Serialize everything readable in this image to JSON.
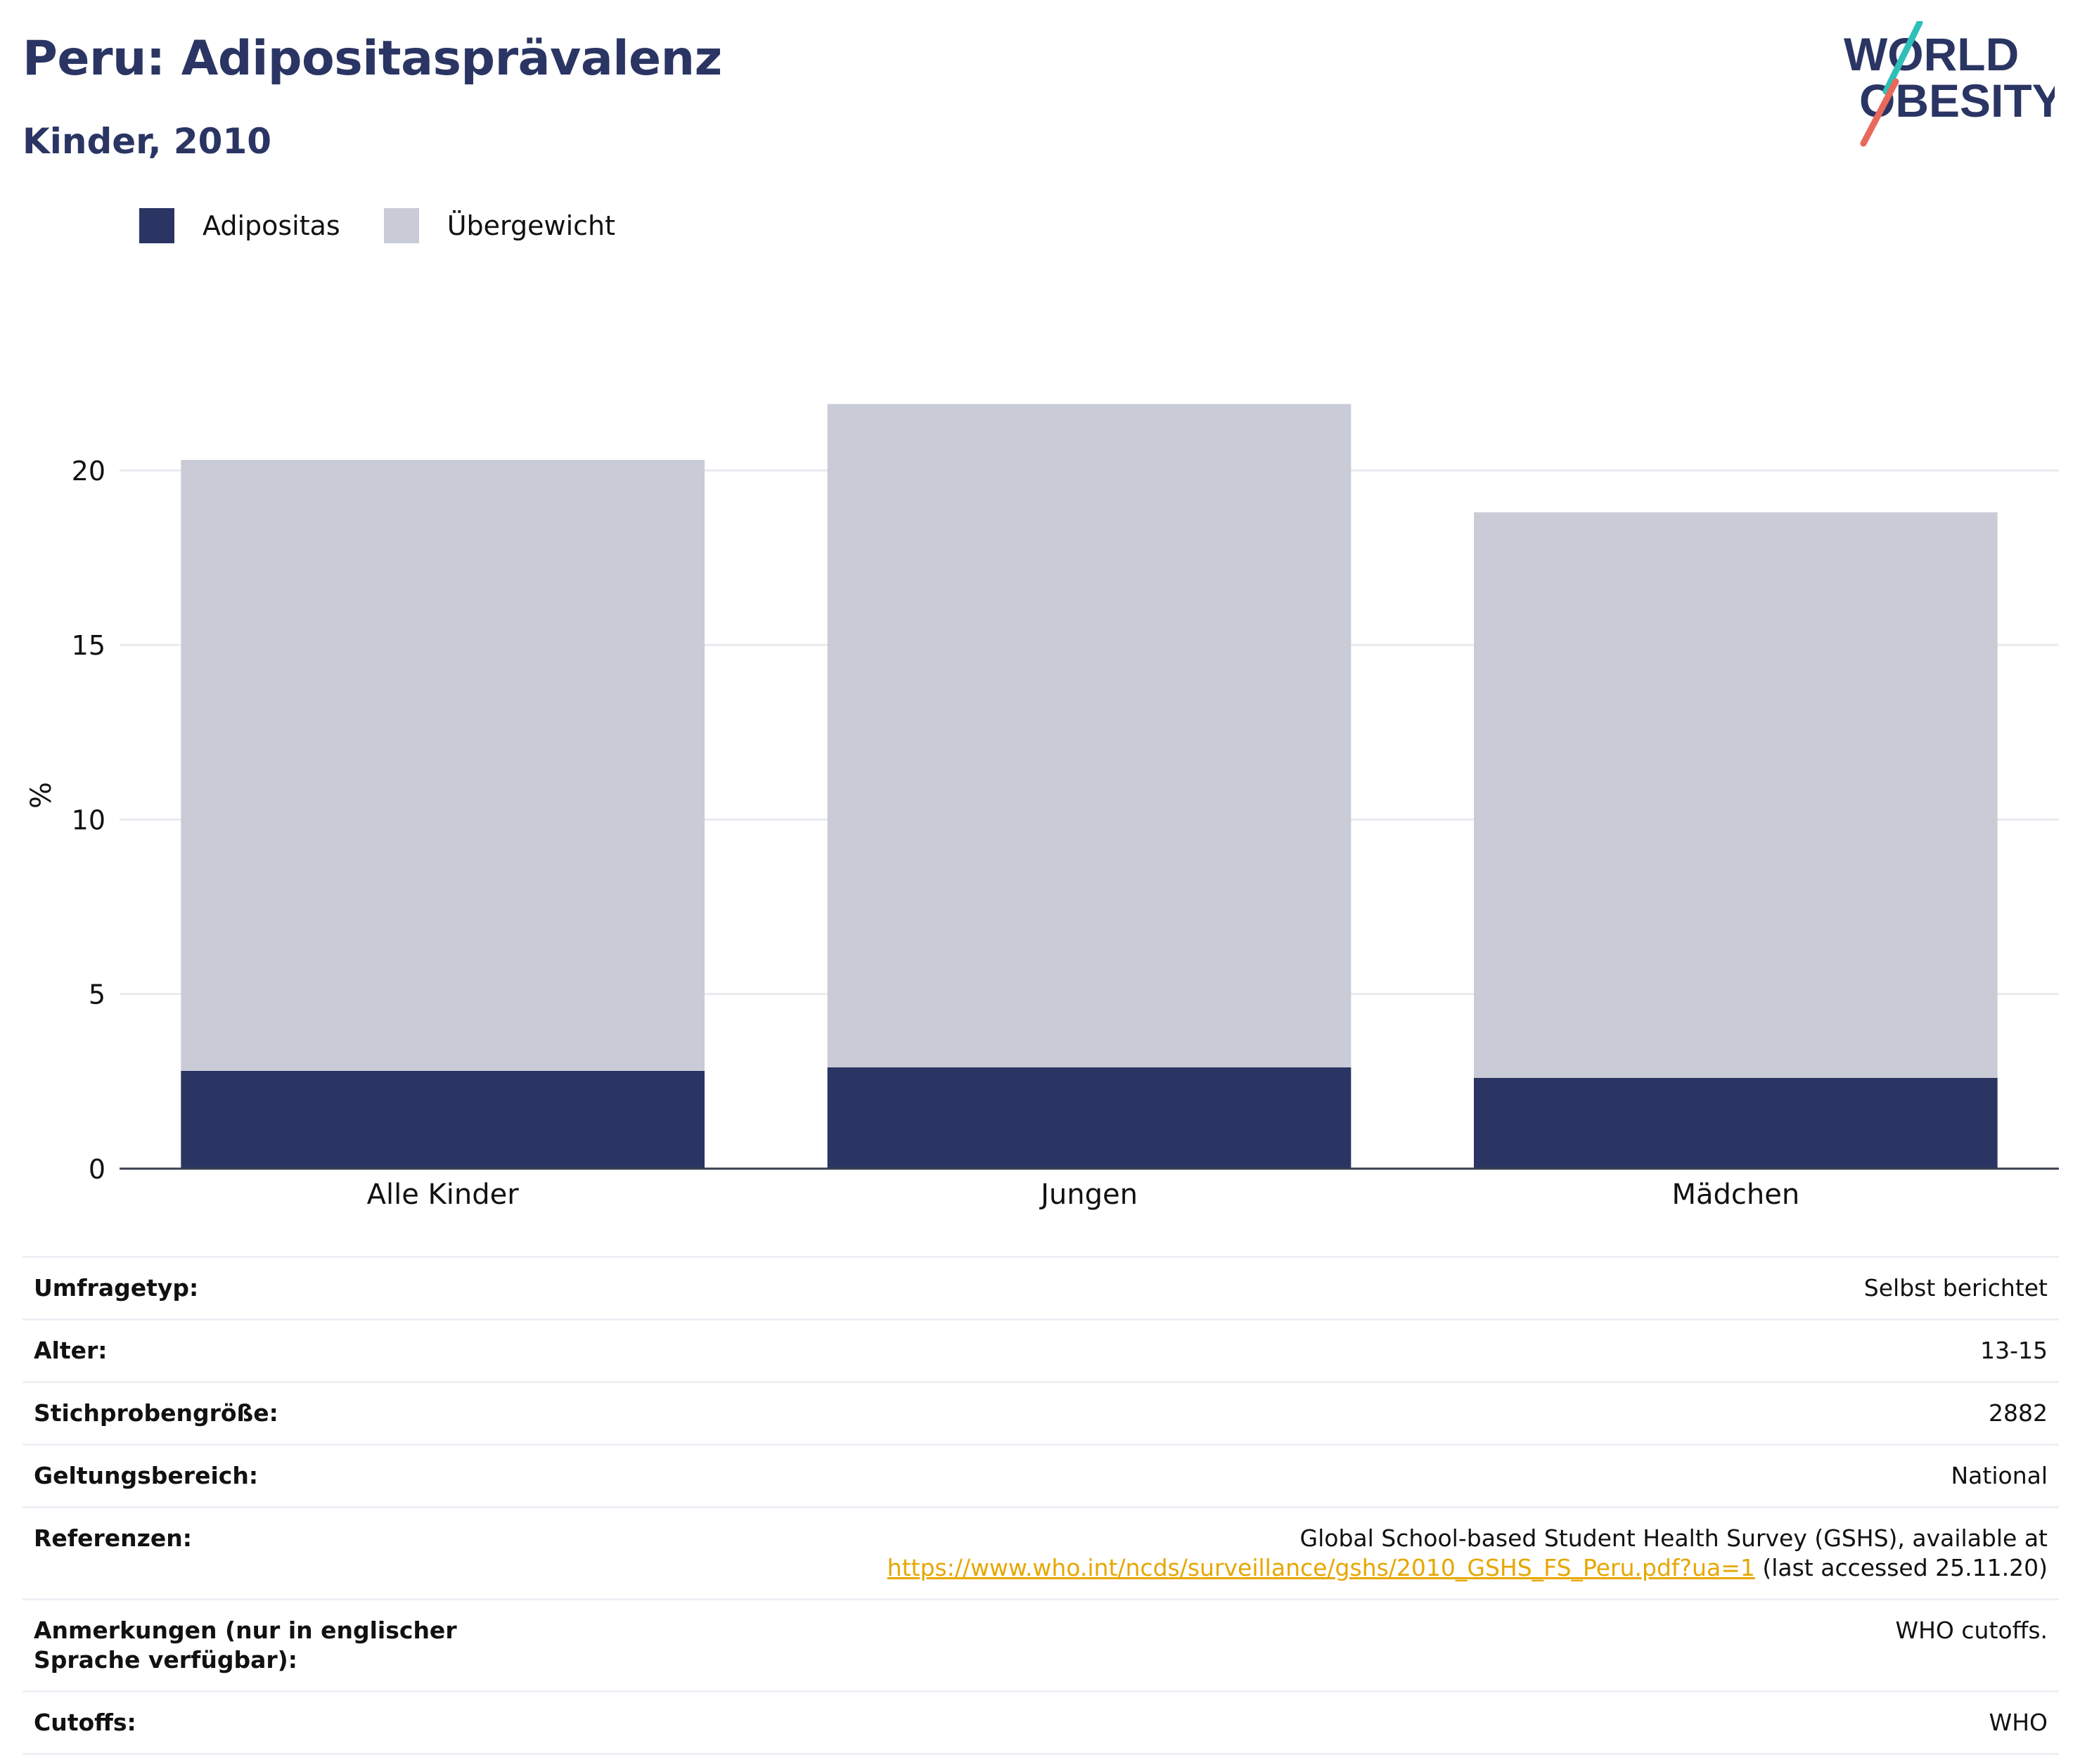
{
  "header": {
    "title": "Peru: Adipositasprävalenz",
    "subtitle": "Kinder, 2010"
  },
  "logo": {
    "line1": "WORLD",
    "line2": "OBESITY",
    "colors": {
      "text": "#2a3563",
      "teal": "#2ebfb8",
      "coral": "#e8695b"
    }
  },
  "legend": [
    {
      "label": "Adipositas",
      "color": "#2a3563"
    },
    {
      "label": "Übergewicht",
      "color": "#c9cbd6"
    }
  ],
  "chart_data": {
    "type": "bar",
    "stacked": true,
    "categories": [
      "Alle Kinder",
      "Jungen",
      "Mädchen"
    ],
    "series": [
      {
        "name": "Adipositas",
        "color": "#2a3563",
        "values": [
          2.8,
          2.9,
          2.6
        ]
      },
      {
        "name": "Übergewicht",
        "color": "#c9cbd6",
        "values": [
          17.5,
          19.0,
          16.2
        ]
      }
    ],
    "ylabel": "%",
    "ylim": [
      0,
      23
    ],
    "yticks": [
      "0",
      "5",
      "10",
      "15",
      "20"
    ],
    "grid": true
  },
  "info": {
    "rows": [
      {
        "key": "Umfragetyp:",
        "value": "Selbst berichtet"
      },
      {
        "key": "Alter:",
        "value": "13-15"
      },
      {
        "key": "Stichprobengröße:",
        "value": "2882"
      },
      {
        "key": "Geltungsbereich:",
        "value": "National"
      }
    ],
    "references": {
      "key": "Referenzen:",
      "line1": "Global School-based Student Health Survey (GSHS), available at",
      "link": "https://www.who.int/ncds/surveillance/gshs/2010_GSHS_FS_Peru.pdf?ua=1",
      "suffix": " (last accessed 25.11.20)"
    },
    "notes": {
      "key": "Anmerkungen (nur in englischer Sprache verfügbar):",
      "value": "WHO cutoffs."
    },
    "cutoffs": {
      "key": "Cutoffs:",
      "value": "WHO"
    }
  }
}
